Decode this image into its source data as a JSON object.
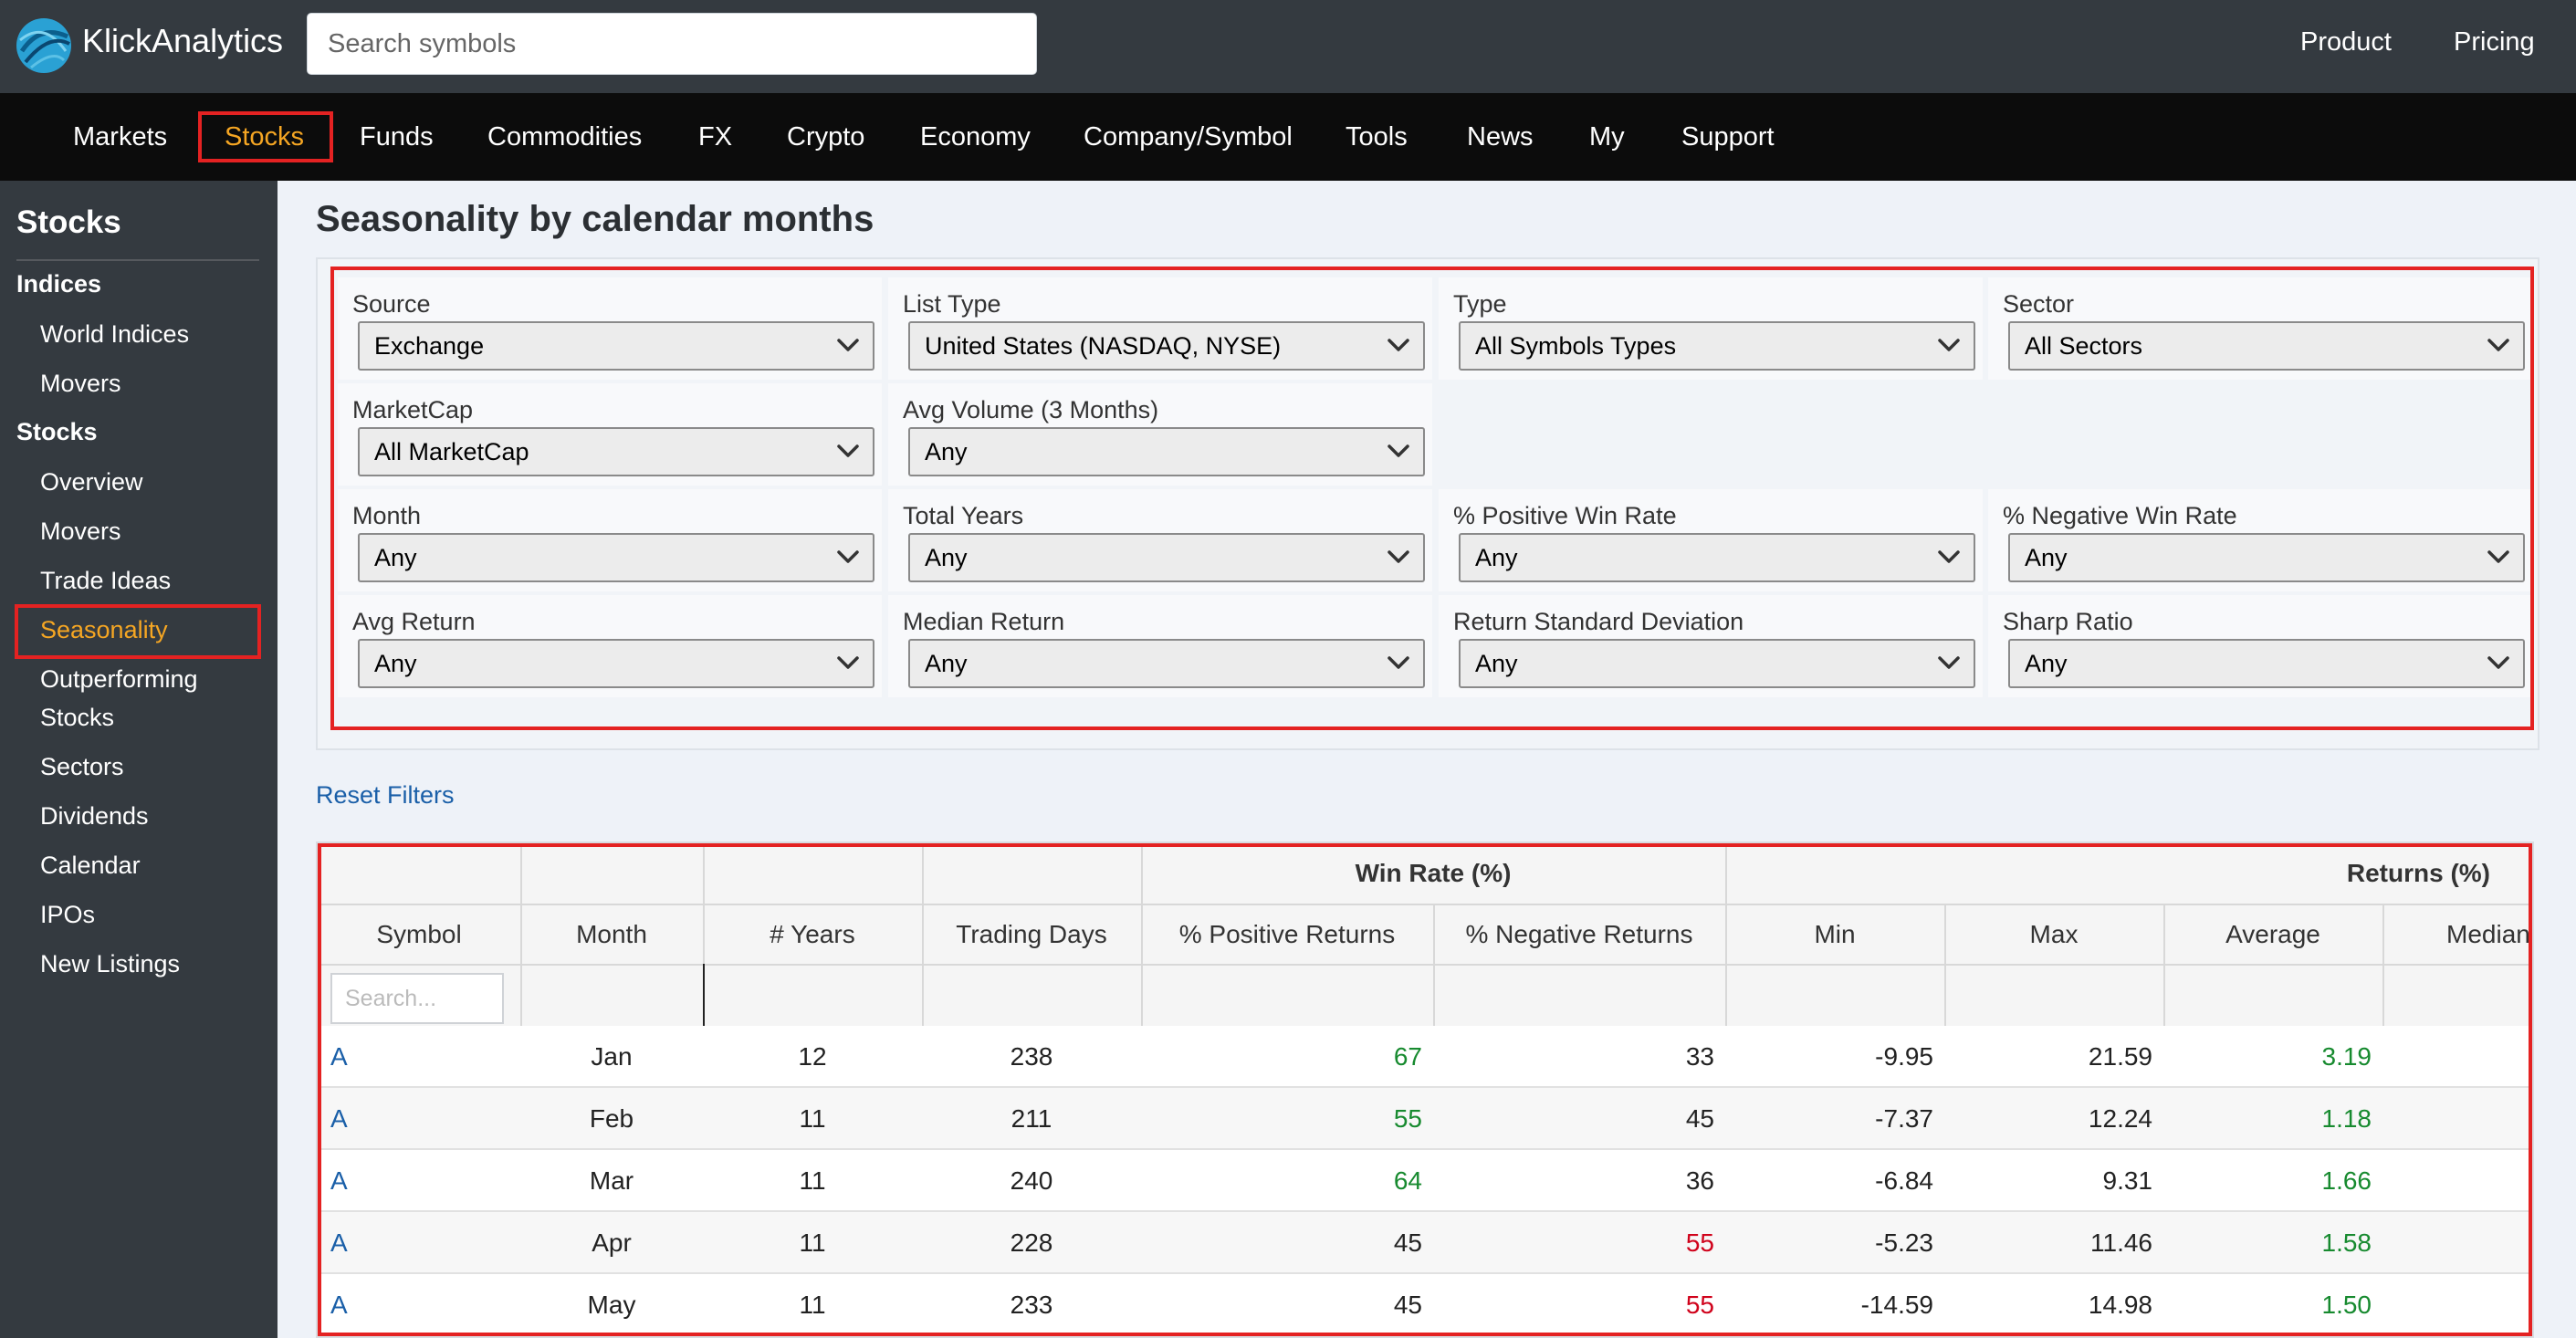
{
  "app": {
    "brand": "KlickAnalytics"
  },
  "search": {
    "placeholder": "Search symbols"
  },
  "top_links": [
    "Product",
    "Pricing"
  ],
  "nav": [
    "Markets",
    "Stocks",
    "Funds",
    "Commodities",
    "FX",
    "Crypto",
    "Economy",
    "Company/Symbol",
    "Tools",
    "News",
    "My",
    "Support"
  ],
  "nav_active": "Stocks",
  "sidebar": {
    "title": "Stocks",
    "sections": [
      {
        "heading": "Indices",
        "items": [
          "World Indices",
          "Movers"
        ]
      },
      {
        "heading": "Stocks",
        "items": [
          "Overview",
          "Movers",
          "Trade Ideas",
          "Seasonality",
          "Outperforming Stocks",
          "Sectors",
          "Dividends",
          "Calendar",
          "IPOs",
          "New Listings"
        ]
      }
    ],
    "active": "Seasonality"
  },
  "page_title": "Seasonality by calendar months",
  "filters": [
    {
      "label": "Source",
      "value": "Exchange"
    },
    {
      "label": "List Type",
      "value": "United States (NASDAQ, NYSE)"
    },
    {
      "label": "Type",
      "value": "All Symbols Types"
    },
    {
      "label": "Sector",
      "value": "All Sectors"
    },
    {
      "label": "MarketCap",
      "value": "All MarketCap"
    },
    {
      "label": "Avg Volume (3 Months)",
      "value": "Any"
    },
    {
      "label": "Month",
      "value": "Any"
    },
    {
      "label": "Total Years",
      "value": "Any"
    },
    {
      "label": "% Positive Win Rate",
      "value": "Any"
    },
    {
      "label": "% Negative Win Rate",
      "value": "Any"
    },
    {
      "label": "Avg Return",
      "value": "Any"
    },
    {
      "label": "Median Return",
      "value": "Any"
    },
    {
      "label": "Return Standard Deviation",
      "value": "Any"
    },
    {
      "label": "Sharp Ratio",
      "value": "Any"
    }
  ],
  "reset_filters": "Reset Filters",
  "table": {
    "groups": [
      "Win Rate (%)",
      "Returns (%)"
    ],
    "columns": [
      "Symbol",
      "Month",
      "# Years",
      "Trading Days",
      "% Positive Returns",
      "% Negative Returns",
      "Min",
      "Max",
      "Average",
      "Median"
    ],
    "symbol_search_placeholder": "Search...",
    "rows": [
      {
        "symbol": "A",
        "month": "Jan",
        "years": "12",
        "days": "238",
        "pos": "67",
        "neg": "33",
        "min": "-9.95",
        "max": "21.59",
        "avg": "3.19"
      },
      {
        "symbol": "A",
        "month": "Feb",
        "years": "11",
        "days": "211",
        "pos": "55",
        "neg": "45",
        "min": "-7.37",
        "max": "12.24",
        "avg": "1.18"
      },
      {
        "symbol": "A",
        "month": "Mar",
        "years": "11",
        "days": "240",
        "pos": "64",
        "neg": "36",
        "min": "-6.84",
        "max": "9.31",
        "avg": "1.66"
      },
      {
        "symbol": "A",
        "month": "Apr",
        "years": "11",
        "days": "228",
        "pos": "45",
        "neg": "55",
        "min": "-5.23",
        "max": "11.46",
        "avg": "1.58"
      },
      {
        "symbol": "A",
        "month": "May",
        "years": "11",
        "days": "233",
        "pos": "45",
        "neg": "55",
        "min": "-14.59",
        "max": "14.98",
        "avg": "1.50"
      }
    ]
  },
  "colors": {
    "positive": "#178a2f",
    "negative": "#d0021b",
    "neutral": "#222222",
    "accent": "#f5a623",
    "highlight_box": "#e42222",
    "link": "#1a5fa8"
  }
}
